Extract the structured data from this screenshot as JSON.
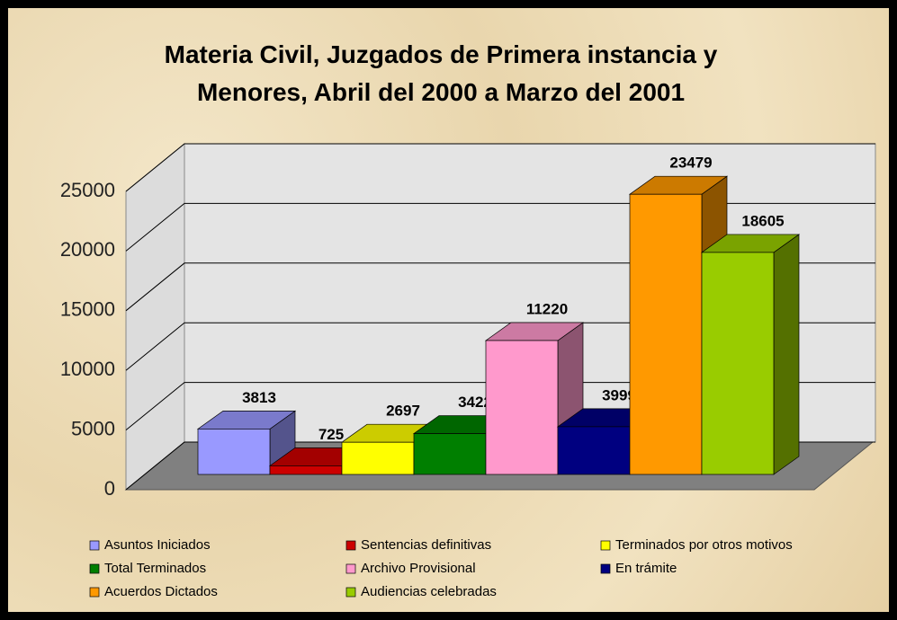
{
  "chart_data": {
    "type": "bar",
    "title": "Materia Civil, Juzgados de Primera instancia y Menores, Abril del 2000 a Marzo del 2001",
    "series": [
      {
        "name": "Asuntos Iniciados",
        "color": "#9999ff",
        "values": [
          3813
        ]
      },
      {
        "name": "Sentencias definitivas",
        "color": "#cc0000",
        "values": [
          725
        ]
      },
      {
        "name": "Terminados por otros motivos",
        "color": "#ffff00",
        "values": [
          2697
        ]
      },
      {
        "name": "Total Terminados",
        "color": "#007f00",
        "values": [
          3422
        ]
      },
      {
        "name": "Archivo Provisional",
        "color": "#ff99cc",
        "values": [
          11220
        ]
      },
      {
        "name": "En trámite",
        "color": "#000080",
        "values": [
          3999
        ]
      },
      {
        "name": "Acuerdos Dictados",
        "color": "#ff9900",
        "values": [
          23479
        ]
      },
      {
        "name": "Audiencias celebradas",
        "color": "#99cc00",
        "values": [
          18605
        ]
      }
    ],
    "ylim": [
      0,
      25000
    ],
    "yticks": [
      0,
      5000,
      10000,
      15000,
      20000,
      25000
    ],
    "grid": true
  }
}
